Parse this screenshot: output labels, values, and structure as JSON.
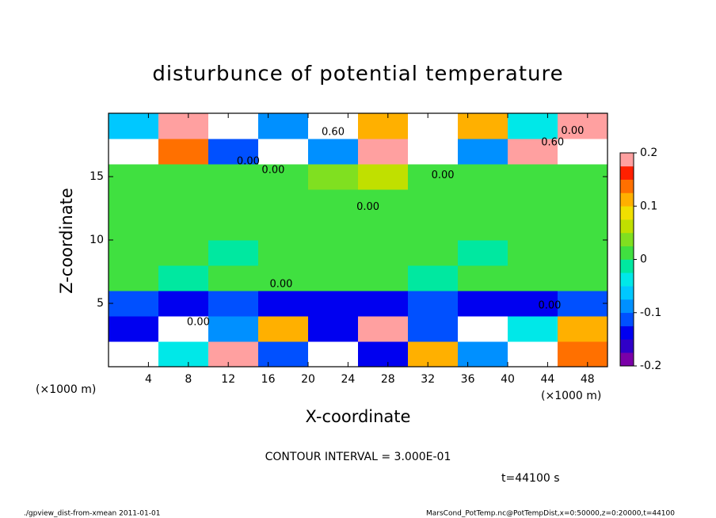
{
  "chart_data": {
    "type": "heatmap",
    "title": "disturbunce of potential temperature",
    "x_label": "X-coordinate",
    "y_label": "Z-coordinate",
    "x_unit_left": "(×1000 m)",
    "x_unit_right": "(×1000 m)",
    "xlim": [
      0,
      50
    ],
    "ylim": [
      0,
      20
    ],
    "xticks": [
      4,
      8,
      12,
      16,
      20,
      24,
      28,
      32,
      36,
      40,
      44,
      48
    ],
    "yticks": [
      5,
      10,
      15
    ],
    "x_edges": [
      0,
      5,
      10,
      15,
      20,
      25,
      30,
      35,
      40,
      45,
      50
    ],
    "y_edges": [
      0,
      2,
      4,
      6,
      8,
      10,
      12,
      14,
      16,
      18,
      20
    ],
    "z": [
      [
        0.25,
        -0.05,
        0.18,
        -0.12,
        0.25,
        -0.15,
        0.12,
        -0.1,
        0.25,
        0.15
      ],
      [
        -0.15,
        0.25,
        -0.1,
        0.1,
        -0.15,
        0.2,
        -0.12,
        0.25,
        -0.05,
        0.1
      ],
      [
        -0.12,
        -0.15,
        -0.12,
        -0.14,
        -0.13,
        -0.15,
        -0.12,
        -0.13,
        -0.14,
        -0.12
      ],
      [
        0.01,
        -0.01,
        0.0,
        0.01,
        0.02,
        0.0,
        -0.01,
        0.01,
        0.0,
        0.01
      ],
      [
        0.0,
        0.01,
        -0.01,
        0.0,
        0.01,
        0.01,
        0.0,
        -0.01,
        0.01,
        0.0
      ],
      [
        0.01,
        0.0,
        0.02,
        0.01,
        0.02,
        0.01,
        0.01,
        0.0,
        0.01,
        0.01
      ],
      [
        0.0,
        0.01,
        0.0,
        0.02,
        0.01,
        0.01,
        0.02,
        0.01,
        0.0,
        0.0
      ],
      [
        0.005,
        0.01,
        0.02,
        0.015,
        0.03,
        0.05,
        0.02,
        0.01,
        0.005,
        0.0
      ],
      [
        0.22,
        0.15,
        -0.12,
        0.25,
        -0.1,
        0.18,
        0.25,
        -0.08,
        0.2,
        0.25
      ],
      [
        -0.06,
        0.2,
        0.25,
        -0.1,
        0.22,
        0.12,
        0.25,
        0.1,
        -0.05,
        0.2
      ]
    ],
    "clim": [
      -0.2,
      0.2
    ],
    "colors": [
      "#7a00a8",
      "#3000c8",
      "#0000f0",
      "#0050ff",
      "#0090ff",
      "#00c8ff",
      "#00e8e8",
      "#00e8a0",
      "#40e040",
      "#80e020",
      "#c0e000",
      "#f0e000",
      "#ffb000",
      "#ff7000",
      "#ff2000",
      "#ffa0a0"
    ],
    "cticks": [
      -0.2,
      -0.1,
      0,
      0.1,
      0.2
    ],
    "contour_labels": [
      {
        "text": "0.60",
        "x": 22.5,
        "y": 18.5
      },
      {
        "text": "0.60",
        "x": 44.5,
        "y": 17.7
      },
      {
        "text": "0.00",
        "x": 46.5,
        "y": 18.6
      },
      {
        "text": "0.00",
        "x": 14,
        "y": 16.2
      },
      {
        "text": "0.00",
        "x": 16.5,
        "y": 15.5
      },
      {
        "text": "0.00",
        "x": 33.5,
        "y": 15.1
      },
      {
        "text": "0.00",
        "x": 26,
        "y": 12.6
      },
      {
        "text": "0.00",
        "x": 17.3,
        "y": 6.5
      },
      {
        "text": "0.00",
        "x": 9,
        "y": 3.5
      },
      {
        "text": "0.00",
        "x": 44.2,
        "y": 4.8
      }
    ],
    "contour_interval": "CONTOUR INTERVAL = 3.000E-01",
    "time_label": "t=44100 s",
    "footer_left": "./gpview_dist-from-xmean   2011-01-01",
    "footer_right": "MarsCond_PotTemp.nc@PotTempDist,x=0:50000,z=0:20000,t=44100"
  }
}
